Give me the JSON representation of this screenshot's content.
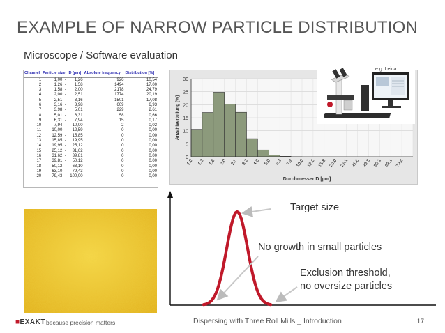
{
  "slide": {
    "title": "EXAMPLE OF NARROW PARTICLE DISTRIBUTION",
    "subtitle": "Microscope / Software evaluation"
  },
  "table": {
    "headers": [
      "Channel",
      "Particle size",
      "D [µm]",
      "Absolute frequency",
      "Distribution [%]"
    ],
    "rows": [
      [
        "1",
        "1,00",
        "-",
        "1,26",
        "926",
        "10,54"
      ],
      [
        "2",
        "1,26",
        "-",
        "1,58",
        "1494",
        "17,00"
      ],
      [
        "3",
        "1,58",
        "-",
        "2,00",
        "2178",
        "24,79"
      ],
      [
        "4",
        "2,00",
        "-",
        "2,51",
        "1774",
        "20,19"
      ],
      [
        "5",
        "2,51",
        "-",
        "3,16",
        "1501",
        "17,08"
      ],
      [
        "6",
        "3,16",
        "-",
        "3,98",
        "609",
        "6,93"
      ],
      [
        "7",
        "3,98",
        "-",
        "5,01",
        "229",
        "2,61"
      ],
      [
        "8",
        "5,01",
        "-",
        "6,31",
        "58",
        "0,66"
      ],
      [
        "9",
        "6,31",
        "-",
        "7,94",
        "15",
        "0,17"
      ],
      [
        "10",
        "7,94",
        "-",
        "10,00",
        "2",
        "0,02"
      ],
      [
        "11",
        "10,00",
        "-",
        "12,59",
        "0",
        "0,00"
      ],
      [
        "12",
        "12,59",
        "-",
        "15,85",
        "0",
        "0,00"
      ],
      [
        "13",
        "15,85",
        "-",
        "19,95",
        "0",
        "0,00"
      ],
      [
        "14",
        "19,95",
        "-",
        "25,12",
        "0",
        "0,00"
      ],
      [
        "15",
        "25,12",
        "-",
        "31,62",
        "0",
        "0,00"
      ],
      [
        "16",
        "31,62",
        "-",
        "39,81",
        "0",
        "0,00"
      ],
      [
        "17",
        "39,81",
        "-",
        "50,12",
        "0",
        "0,00"
      ],
      [
        "18",
        "50,12",
        "-",
        "63,10",
        "0",
        "0,00"
      ],
      [
        "19",
        "63,10",
        "-",
        "79,43",
        "0",
        "0,00"
      ],
      [
        "20",
        "79,43",
        "-",
        "100,00",
        "0",
        "0,00"
      ]
    ]
  },
  "chart_data": [
    {
      "type": "bar",
      "ylabel": "Anzahlverteilung [%]",
      "xlabel": "Durchmesser D [µm]",
      "ylim": [
        0,
        30
      ],
      "yticks": [
        "0",
        "5",
        "10",
        "15",
        "20",
        "25",
        "30"
      ],
      "categories": [
        "1.0",
        "1.3",
        "1.6",
        "2.0",
        "2.5",
        "3.2",
        "4.0",
        "5.0",
        "6.3",
        "7.9",
        "10.0",
        "12.6",
        "15.8",
        "20.0",
        "25.1",
        "31.6",
        "39.8",
        "50.1",
        "63.1",
        "79.4"
      ],
      "values": [
        10.54,
        17.0,
        24.79,
        20.19,
        17.08,
        6.93,
        2.61,
        0.66,
        0.17,
        0.02,
        0,
        0,
        0,
        0,
        0,
        0,
        0,
        0,
        0,
        0
      ],
      "grid": true,
      "bar_color": "#8c9a7c"
    }
  ],
  "photo_note": "e.g. Leica",
  "diagram": {
    "target_label": "Target size",
    "small_label": "No growth in small particles",
    "exclusion_line1": "Exclusion threshold,",
    "exclusion_line2": "no oversize particles",
    "curve_color": "#c0192a"
  },
  "footer": {
    "logo": "EXAKT",
    "tagline": "because precision matters.",
    "title": "Dispersing with Three Roll Mills _ Introduction",
    "page": "17"
  },
  "colors": {
    "accent_red": "#c0192a",
    "title_grey": "#555555"
  }
}
